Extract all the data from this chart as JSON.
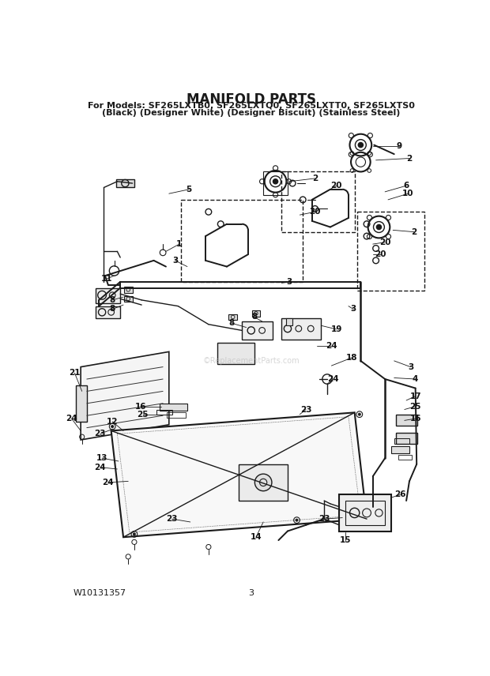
{
  "title_line1": "MANIFOLD PARTS",
  "title_line2": "For Models: SF265LXTB0, SF265LXTQ0, SF265LXTT0, SF265LXTS0",
  "title_line3": "(Black) (Designer White) (Designer Biscuit) (Stainless Steel)",
  "footer_left": "W10131357",
  "footer_center": "3",
  "bg_color": "#ffffff",
  "title_fontsize": 12,
  "subtitle_fontsize": 8,
  "footer_fontsize": 8,
  "watermark": "©ReplacementParts.com",
  "watermark_color": "#bbbbbb",
  "fig_width": 6.2,
  "fig_height": 8.56,
  "dpi": 100
}
